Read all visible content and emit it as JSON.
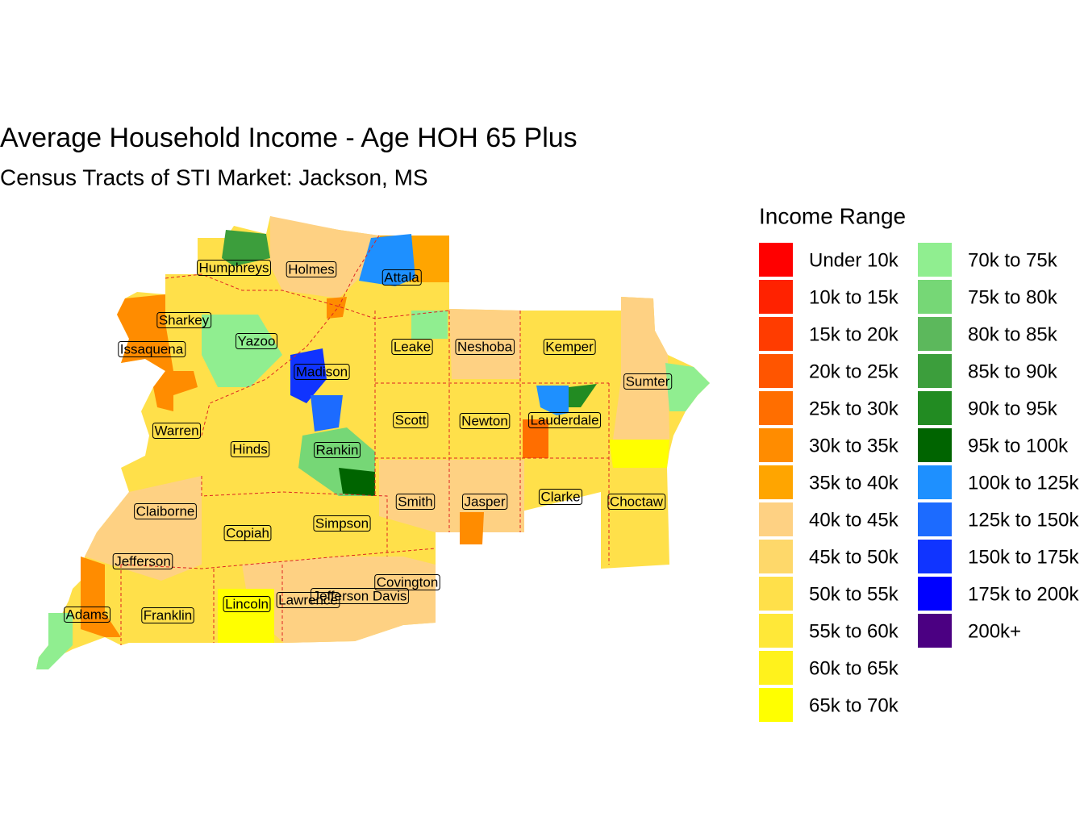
{
  "title": "Average Household Income - Age HOH 65 Plus",
  "subtitle": "Census Tracts of STI Market: Jackson, MS",
  "legend": {
    "title": "Income Range",
    "entries": [
      {
        "label": "Under 10k",
        "color": "#ff0000"
      },
      {
        "label": "10k to 15k",
        "color": "#ff2200"
      },
      {
        "label": "15k to 20k",
        "color": "#ff3c00"
      },
      {
        "label": "20k to 25k",
        "color": "#ff5500"
      },
      {
        "label": "25k to 30k",
        "color": "#ff6e00"
      },
      {
        "label": "30k to 35k",
        "color": "#ff8c00"
      },
      {
        "label": "35k to 40k",
        "color": "#ffa500"
      },
      {
        "label": "40k to 45k",
        "color": "#fed183"
      },
      {
        "label": "45k to 50k",
        "color": "#fed86a"
      },
      {
        "label": "50k to 55k",
        "color": "#ffe04a"
      },
      {
        "label": "55k to 60k",
        "color": "#ffe838"
      },
      {
        "label": "60k to 65k",
        "color": "#fff21c"
      },
      {
        "label": "65k to 70k",
        "color": "#ffff00"
      },
      {
        "label": "70k to 75k",
        "color": "#90ee90"
      },
      {
        "label": "75k to 80k",
        "color": "#76d776"
      },
      {
        "label": "80k to 85k",
        "color": "#5cb85c"
      },
      {
        "label": "85k to 90k",
        "color": "#3c9e3c"
      },
      {
        "label": "90k to 95k",
        "color": "#228b22"
      },
      {
        "label": "95k to 100k",
        "color": "#006400"
      },
      {
        "label": "100k to 125k",
        "color": "#1e90ff"
      },
      {
        "label": "125k to 150k",
        "color": "#1c6bff"
      },
      {
        "label": "150k to 175k",
        "color": "#1034ff"
      },
      {
        "label": "175k to 200k",
        "color": "#0000ff"
      },
      {
        "label": "200k+",
        "color": "#4b0082"
      }
    ]
  },
  "counties": [
    "Humphreys",
    "Holmes",
    "Attala",
    "Sharkey",
    "Issaquena",
    "Yazoo",
    "Leake",
    "Neshoba",
    "Kemper",
    "Madison",
    "Sumter",
    "Scott",
    "Newton",
    "Lauderdale",
    "Warren",
    "Hinds",
    "Rankin",
    "Smith",
    "Jasper",
    "Clarke",
    "Choctaw",
    "Claiborne",
    "Copiah",
    "Simpson",
    "Jefferson",
    "Covington",
    "Jefferson Davis",
    "Lincoln",
    "Lawrence",
    "Adams",
    "Franklin"
  ]
}
